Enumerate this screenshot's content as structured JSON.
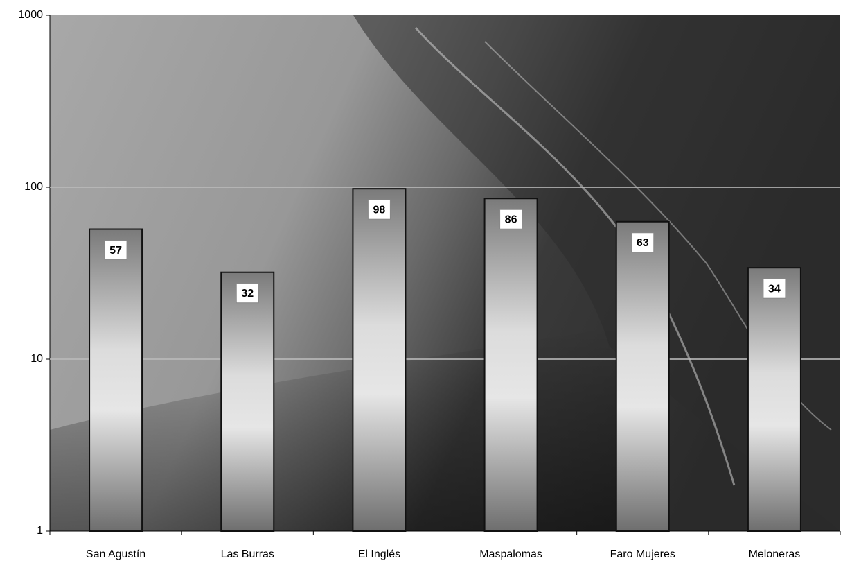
{
  "chart_data": {
    "type": "bar",
    "categories": [
      "San Agustín",
      "Las Burras",
      "El Inglés",
      "Maspalomas",
      "Faro Mujeres",
      "Meloneras"
    ],
    "values": [
      57,
      32,
      98,
      86,
      63,
      34
    ],
    "color": "#9a9a9a",
    "ylim": [
      1,
      1000
    ],
    "yticks": [
      1,
      10,
      100,
      1000
    ],
    "log_scale": true,
    "grid": true
  }
}
